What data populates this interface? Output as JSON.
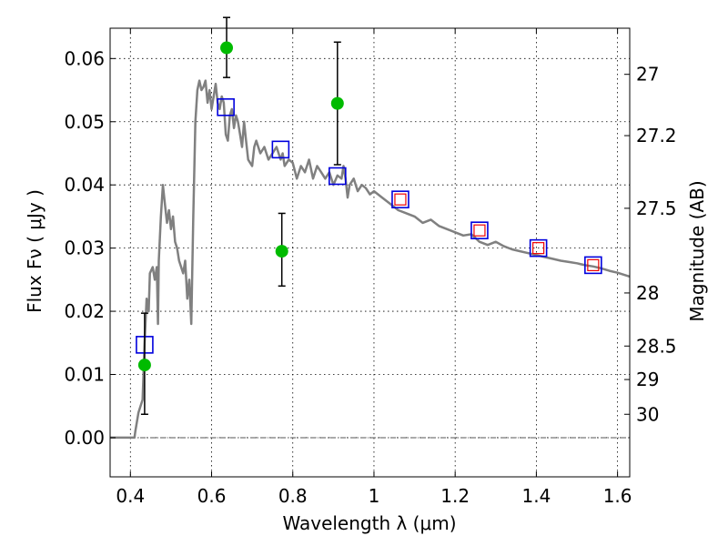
{
  "chart_data": {
    "type": "scatter",
    "title": "",
    "xlabel": "Wavelength  λ (μm)",
    "ylabel": "Flux  Fν  ( μJy )",
    "y2label": "Magnitude (AB)",
    "xlim": [
      0.35,
      1.63
    ],
    "ylim": [
      -0.0062,
      0.0648
    ],
    "xticks": [
      0.4,
      0.6,
      0.8,
      1.0,
      1.2,
      1.4,
      1.6
    ],
    "xtick_labels": [
      "0.4",
      "0.6",
      "0.8",
      "1",
      "1.2",
      "1.4",
      "1.6"
    ],
    "yticks": [
      0.0,
      0.01,
      0.02,
      0.03,
      0.04,
      0.05,
      0.06
    ],
    "ytick_labels": [
      "0.00",
      "0.01",
      "0.02",
      "0.03",
      "0.04",
      "0.05",
      "0.06"
    ],
    "y2ticks": [
      {
        "label": "27",
        "flux": 0.0575
      },
      {
        "label": "27.2",
        "flux": 0.0478
      },
      {
        "label": "27.5",
        "flux": 0.0363
      },
      {
        "label": "28",
        "flux": 0.0229
      },
      {
        "label": "28.5",
        "flux": 0.0145
      },
      {
        "label": "29",
        "flux": 0.0092
      },
      {
        "label": "30",
        "flux": 0.0037
      }
    ],
    "grid": true,
    "colors": {
      "model": "#808080",
      "observed": "#00bb00",
      "model_boxes": "#0000dd",
      "model_boxes_inner": "#ee0000",
      "errorbars": "#000000"
    },
    "series": [
      {
        "name": "model spectrum",
        "type": "line",
        "x": [
          0.35,
          0.41,
          0.412,
          0.42,
          0.43,
          0.435,
          0.44,
          0.445,
          0.448,
          0.455,
          0.46,
          0.465,
          0.468,
          0.47,
          0.475,
          0.48,
          0.485,
          0.49,
          0.495,
          0.5,
          0.505,
          0.51,
          0.515,
          0.52,
          0.53,
          0.535,
          0.54,
          0.545,
          0.55,
          0.555,
          0.56,
          0.565,
          0.57,
          0.575,
          0.58,
          0.585,
          0.59,
          0.595,
          0.6,
          0.605,
          0.61,
          0.615,
          0.62,
          0.625,
          0.63,
          0.635,
          0.64,
          0.645,
          0.65,
          0.655,
          0.66,
          0.665,
          0.67,
          0.675,
          0.68,
          0.685,
          0.69,
          0.7,
          0.705,
          0.71,
          0.715,
          0.72,
          0.73,
          0.74,
          0.75,
          0.76,
          0.77,
          0.775,
          0.78,
          0.79,
          0.8,
          0.81,
          0.82,
          0.83,
          0.84,
          0.85,
          0.86,
          0.87,
          0.88,
          0.89,
          0.9,
          0.91,
          0.92,
          0.925,
          0.93,
          0.935,
          0.94,
          0.95,
          0.96,
          0.97,
          0.98,
          0.99,
          1.0,
          1.02,
          1.04,
          1.06,
          1.08,
          1.1,
          1.12,
          1.14,
          1.16,
          1.18,
          1.2,
          1.22,
          1.24,
          1.26,
          1.28,
          1.3,
          1.32,
          1.34,
          1.36,
          1.38,
          1.4,
          1.42,
          1.44,
          1.46,
          1.48,
          1.5,
          1.52,
          1.54,
          1.56,
          1.58,
          1.6,
          1.63
        ],
        "y": [
          0.0,
          0.0,
          0.001,
          0.004,
          0.006,
          0.015,
          0.022,
          0.02,
          0.026,
          0.027,
          0.025,
          0.027,
          0.018,
          0.028,
          0.035,
          0.04,
          0.037,
          0.034,
          0.036,
          0.033,
          0.035,
          0.031,
          0.03,
          0.028,
          0.026,
          0.028,
          0.022,
          0.025,
          0.018,
          0.035,
          0.05,
          0.055,
          0.0565,
          0.055,
          0.0555,
          0.0565,
          0.053,
          0.055,
          0.052,
          0.054,
          0.056,
          0.053,
          0.052,
          0.054,
          0.053,
          0.048,
          0.047,
          0.051,
          0.052,
          0.049,
          0.051,
          0.05,
          0.048,
          0.046,
          0.05,
          0.047,
          0.044,
          0.043,
          0.046,
          0.047,
          0.046,
          0.045,
          0.046,
          0.044,
          0.045,
          0.046,
          0.044,
          0.045,
          0.043,
          0.044,
          0.0435,
          0.041,
          0.043,
          0.042,
          0.044,
          0.041,
          0.043,
          0.042,
          0.041,
          0.042,
          0.04,
          0.0415,
          0.041,
          0.043,
          0.041,
          0.038,
          0.04,
          0.041,
          0.039,
          0.04,
          0.0395,
          0.0385,
          0.039,
          0.038,
          0.037,
          0.036,
          0.0355,
          0.035,
          0.034,
          0.0345,
          0.0335,
          0.033,
          0.0325,
          0.032,
          0.0322,
          0.031,
          0.0305,
          0.031,
          0.0303,
          0.0298,
          0.0295,
          0.0292,
          0.0289,
          0.0286,
          0.0283,
          0.028,
          0.0278,
          0.0276,
          0.0273,
          0.0271,
          0.0268,
          0.0264,
          0.0261,
          0.0255
        ]
      },
      {
        "name": "model photometry",
        "type": "open-square",
        "x": [
          0.435,
          0.635,
          0.77,
          0.91,
          1.065,
          1.26,
          1.405,
          1.54
        ],
        "y": [
          0.0147,
          0.0523,
          0.0456,
          0.0414,
          0.0377,
          0.0328,
          0.03,
          0.0273
        ],
        "inner_markers": [
          false,
          false,
          false,
          false,
          true,
          true,
          true,
          true
        ]
      },
      {
        "name": "observed",
        "type": "filled-circle",
        "x": [
          0.435,
          0.637,
          0.773,
          0.91
        ],
        "y": [
          0.0115,
          0.0617,
          0.0295,
          0.0529
        ],
        "yerr_low": [
          0.0078,
          0.0047,
          0.0055,
          0.0097
        ],
        "yerr_high": [
          0.0082,
          0.0048,
          0.006,
          0.0097
        ]
      }
    ]
  }
}
